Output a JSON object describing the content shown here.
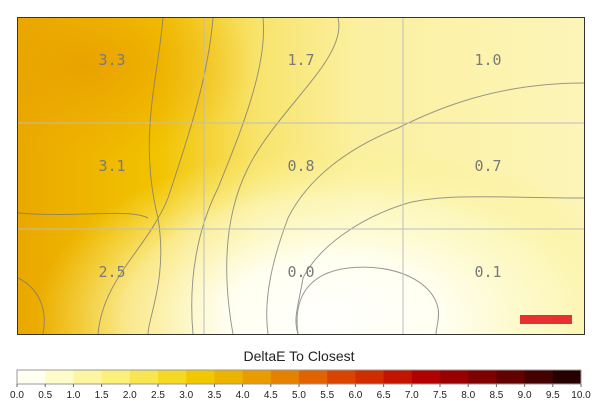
{
  "chart_data": {
    "type": "heatmap",
    "title": "",
    "xlabel": "",
    "ylabel": "",
    "rows": 3,
    "cols": 3,
    "values": [
      [
        3.3,
        1.7,
        1.0
      ],
      [
        3.1,
        0.8,
        0.7
      ],
      [
        2.5,
        0.0,
        0.1
      ]
    ],
    "value_labels": [
      [
        "3.3",
        "1.7",
        "1.0"
      ],
      [
        "3.1",
        "0.8",
        "0.7"
      ],
      [
        "2.5",
        "0.0",
        "0.1"
      ]
    ],
    "colorbar": {
      "title": "DeltaE To Closest",
      "min": 0.0,
      "max": 10.0,
      "ticks": [
        "0.0",
        "0.5",
        "1.0",
        "1.5",
        "2.0",
        "2.5",
        "3.0",
        "3.5",
        "4.0",
        "4.5",
        "5.0",
        "5.5",
        "6.0",
        "6.5",
        "7.0",
        "7.5",
        "8.0",
        "8.5",
        "9.0",
        "9.5",
        "10.0"
      ],
      "colors": [
        "#fffff2",
        "#fefcc8",
        "#fcf6a3",
        "#fbf07c",
        "#f8e552",
        "#f5d925",
        "#f1c800",
        "#ebb400",
        "#e89c00",
        "#e48200",
        "#e06200",
        "#d94500",
        "#cf2c00",
        "#c21500",
        "#b00000",
        "#980000",
        "#7e0000",
        "#630000",
        "#450000",
        "#260000"
      ]
    },
    "marker": {
      "color": "#e83030"
    }
  }
}
